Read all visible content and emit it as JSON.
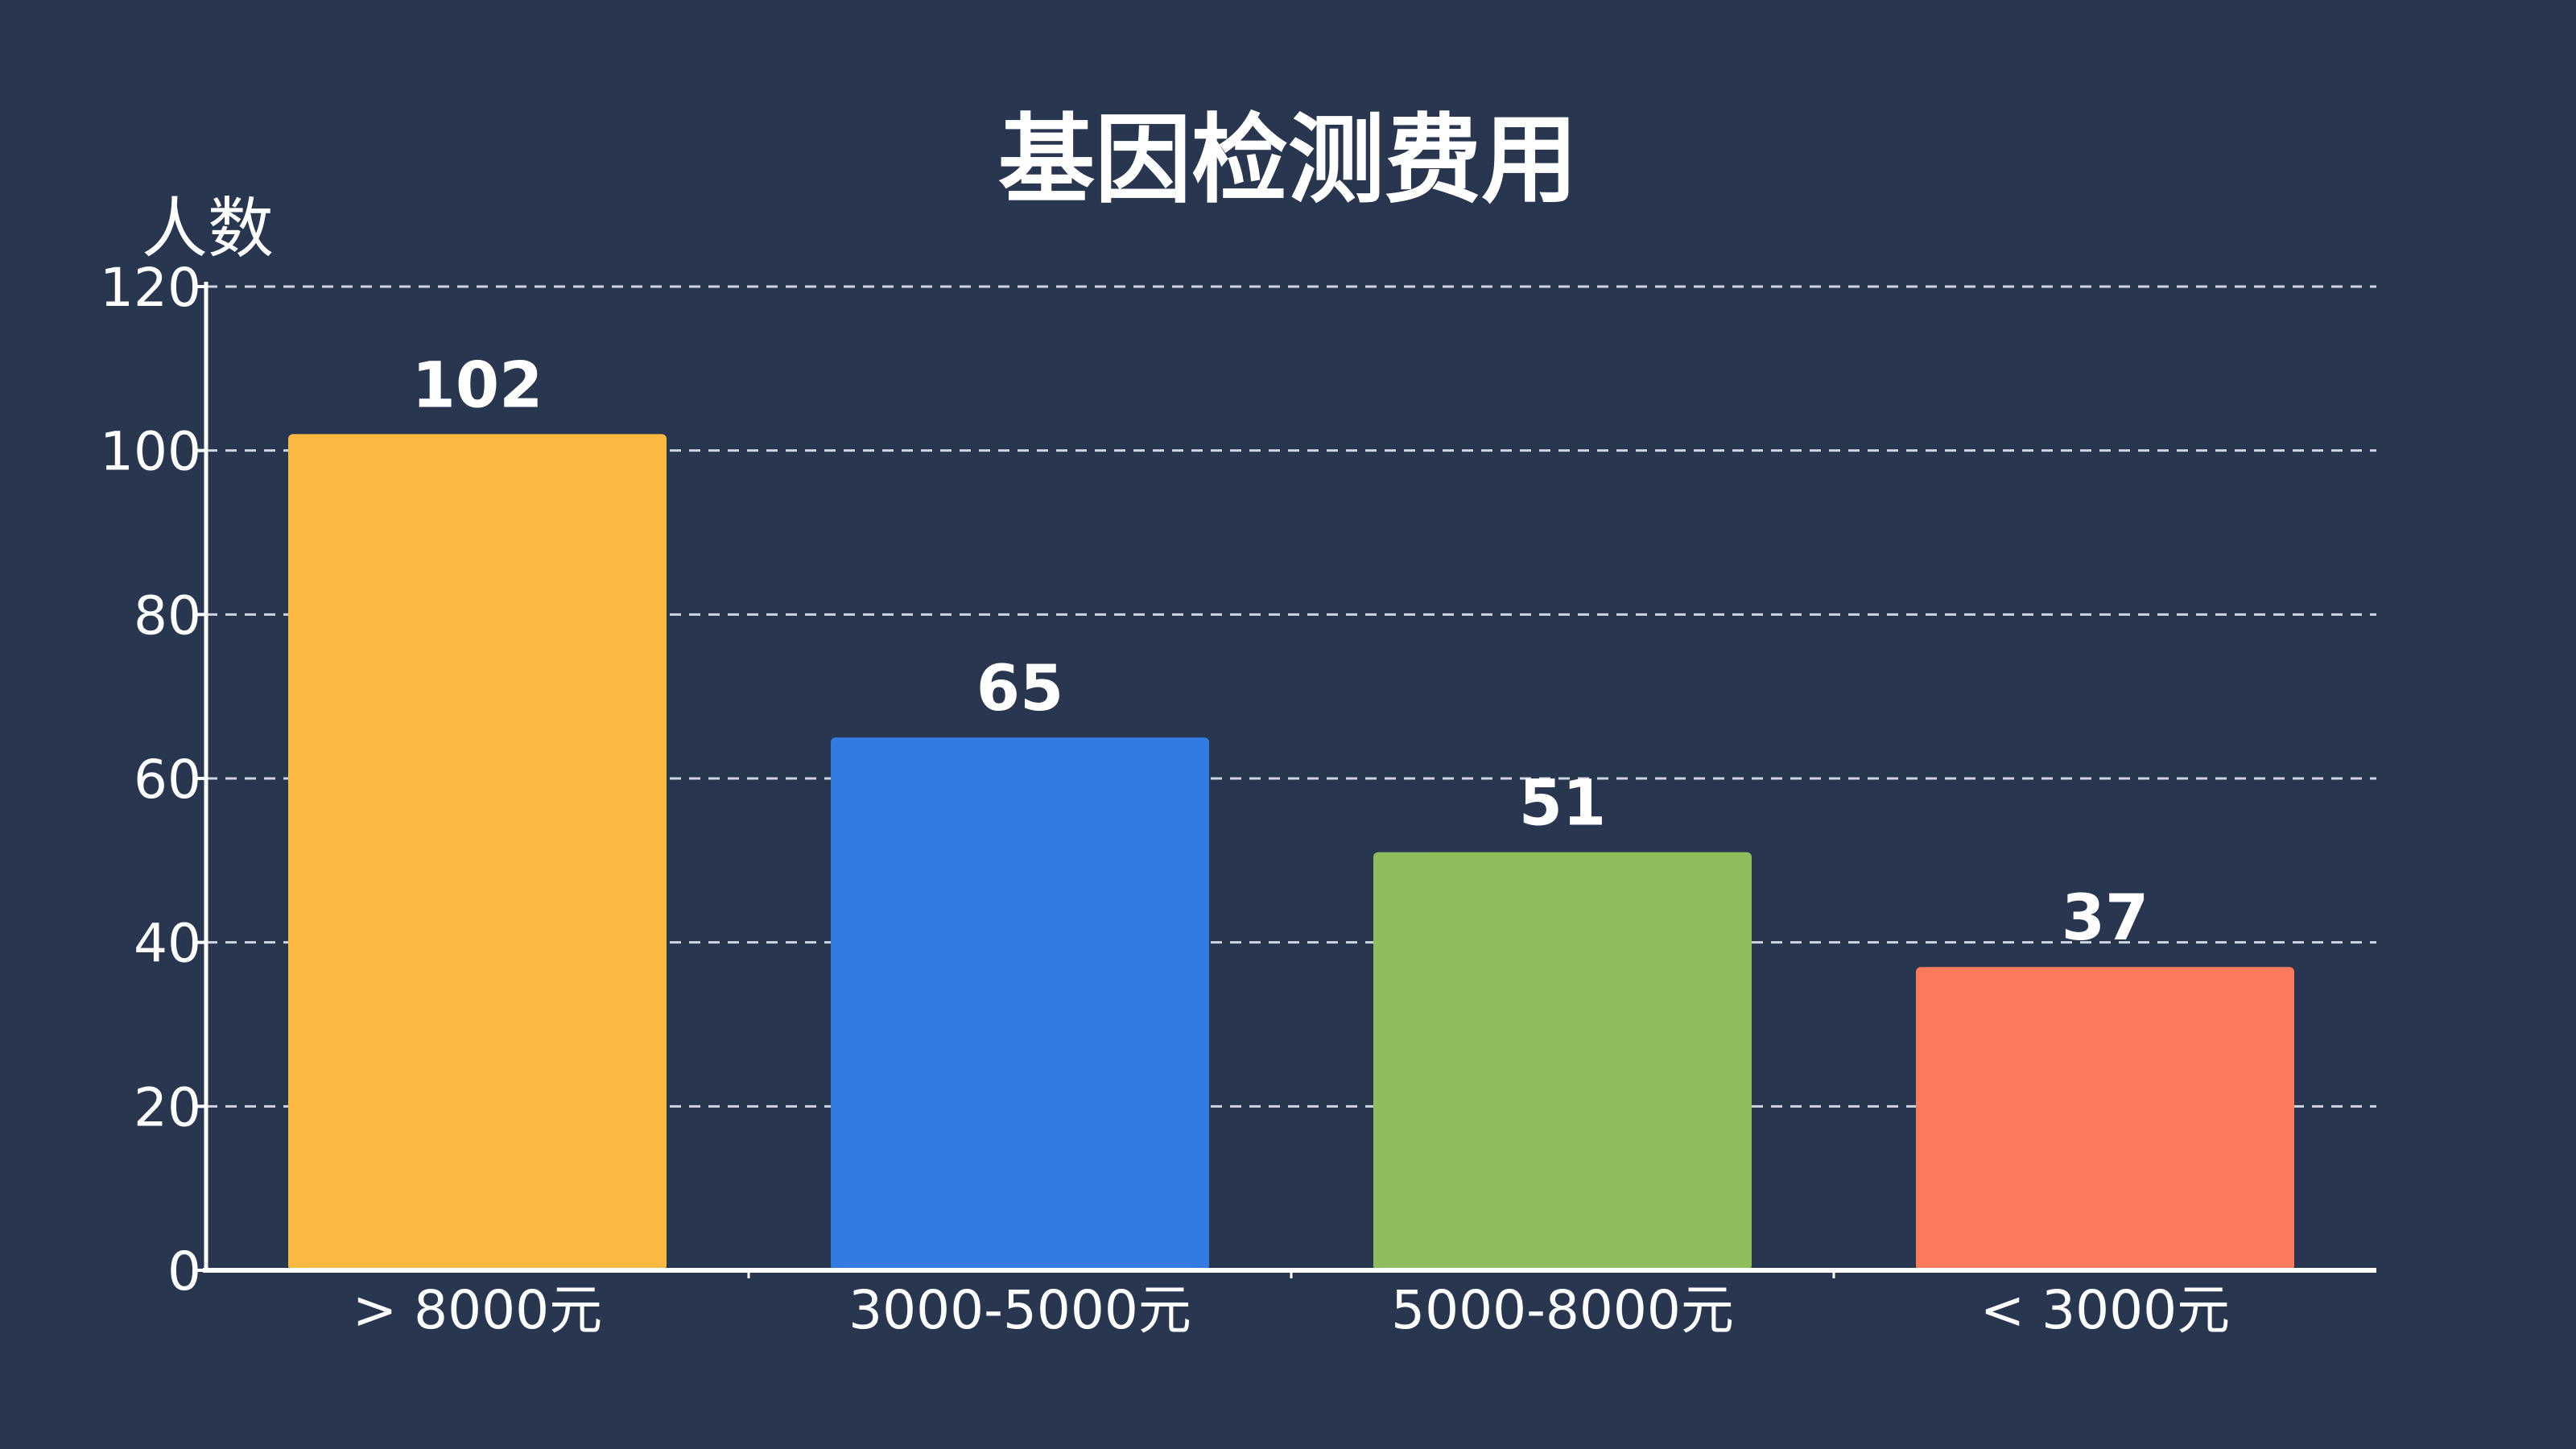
{
  "chart_data": {
    "type": "bar",
    "title": "基因检测费用",
    "ylabel": "人数",
    "xlabel": "",
    "categories": [
      "> 8000元",
      "3000-5000元",
      "5000-8000元",
      "< 3000元"
    ],
    "values": [
      102,
      65,
      51,
      37
    ],
    "ylim": [
      0,
      120
    ],
    "yticks": [
      0,
      20,
      40,
      60,
      80,
      100,
      120
    ],
    "grid": true,
    "colors": [
      "#fbb942",
      "#327be0",
      "#8fbc5d",
      "#fe7a5c"
    ],
    "background": "#283650"
  }
}
